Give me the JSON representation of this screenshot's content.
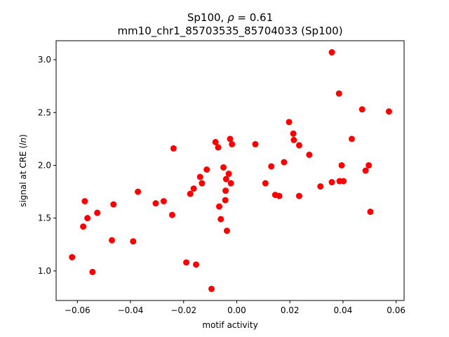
{
  "chart_data": {
    "type": "scatter",
    "title_line1": "Sp100, ρ = 0.61",
    "title_line2": "mm10_chr1_85703535_85704033 (Sp100)",
    "xlabel": "motif activity",
    "ylabel": "signal at CRE (ln)",
    "xlim": [
      -0.068,
      0.063
    ],
    "ylim": [
      0.72,
      3.18
    ],
    "xticks": [
      -0.06,
      -0.04,
      -0.02,
      0.0,
      0.02,
      0.04,
      0.06
    ],
    "xtick_labels": [
      "−0.06",
      "−0.04",
      "−0.02",
      "0.00",
      "0.02",
      "0.04",
      "0.06"
    ],
    "yticks": [
      1.0,
      1.5,
      2.0,
      2.5,
      3.0
    ],
    "ytick_labels": [
      "1.0",
      "1.5",
      "2.0",
      "2.5",
      "3.0"
    ],
    "grid": false,
    "marker_color": "#ff0000",
    "points": [
      {
        "x": -0.062,
        "y": 1.13
      },
      {
        "x": -0.0578,
        "y": 1.42
      },
      {
        "x": -0.0572,
        "y": 1.66
      },
      {
        "x": -0.0562,
        "y": 1.5
      },
      {
        "x": -0.0543,
        "y": 0.99
      },
      {
        "x": -0.0525,
        "y": 1.55
      },
      {
        "x": -0.047,
        "y": 1.29
      },
      {
        "x": -0.0464,
        "y": 1.63
      },
      {
        "x": -0.039,
        "y": 1.28
      },
      {
        "x": -0.0372,
        "y": 1.75
      },
      {
        "x": -0.0305,
        "y": 1.64
      },
      {
        "x": -0.0275,
        "y": 1.66
      },
      {
        "x": -0.0243,
        "y": 1.53
      },
      {
        "x": -0.0238,
        "y": 2.16
      },
      {
        "x": -0.019,
        "y": 1.08
      },
      {
        "x": -0.0175,
        "y": 1.73
      },
      {
        "x": -0.0162,
        "y": 1.78
      },
      {
        "x": -0.0153,
        "y": 1.06
      },
      {
        "x": -0.0138,
        "y": 1.89
      },
      {
        "x": -0.0131,
        "y": 1.83
      },
      {
        "x": -0.0113,
        "y": 1.96
      },
      {
        "x": -0.0095,
        "y": 0.83
      },
      {
        "x": -0.008,
        "y": 2.22
      },
      {
        "x": -0.007,
        "y": 2.17
      },
      {
        "x": -0.0066,
        "y": 1.61
      },
      {
        "x": -0.006,
        "y": 1.49
      },
      {
        "x": -0.005,
        "y": 1.98
      },
      {
        "x": -0.0043,
        "y": 1.67
      },
      {
        "x": -0.0042,
        "y": 1.76
      },
      {
        "x": -0.004,
        "y": 1.87
      },
      {
        "x": -0.0037,
        "y": 1.38
      },
      {
        "x": -0.003,
        "y": 1.92
      },
      {
        "x": -0.0025,
        "y": 2.25
      },
      {
        "x": -0.0022,
        "y": 1.83
      },
      {
        "x": -0.0018,
        "y": 2.2
      },
      {
        "x": 0.007,
        "y": 2.2
      },
      {
        "x": 0.0108,
        "y": 1.83
      },
      {
        "x": 0.013,
        "y": 1.99
      },
      {
        "x": 0.0145,
        "y": 1.72
      },
      {
        "x": 0.016,
        "y": 1.71
      },
      {
        "x": 0.0178,
        "y": 2.03
      },
      {
        "x": 0.0197,
        "y": 2.41
      },
      {
        "x": 0.0213,
        "y": 2.3
      },
      {
        "x": 0.0215,
        "y": 2.24
      },
      {
        "x": 0.0235,
        "y": 2.19
      },
      {
        "x": 0.0235,
        "y": 1.71
      },
      {
        "x": 0.0273,
        "y": 2.1
      },
      {
        "x": 0.0315,
        "y": 1.8
      },
      {
        "x": 0.0358,
        "y": 3.07
      },
      {
        "x": 0.0358,
        "y": 1.84
      },
      {
        "x": 0.0385,
        "y": 2.68
      },
      {
        "x": 0.0387,
        "y": 1.85
      },
      {
        "x": 0.0395,
        "y": 2.0
      },
      {
        "x": 0.0402,
        "y": 1.85
      },
      {
        "x": 0.0433,
        "y": 2.25
      },
      {
        "x": 0.0472,
        "y": 2.53
      },
      {
        "x": 0.0485,
        "y": 1.95
      },
      {
        "x": 0.0497,
        "y": 2.0
      },
      {
        "x": 0.0503,
        "y": 1.56
      },
      {
        "x": 0.0573,
        "y": 2.51
      }
    ]
  }
}
